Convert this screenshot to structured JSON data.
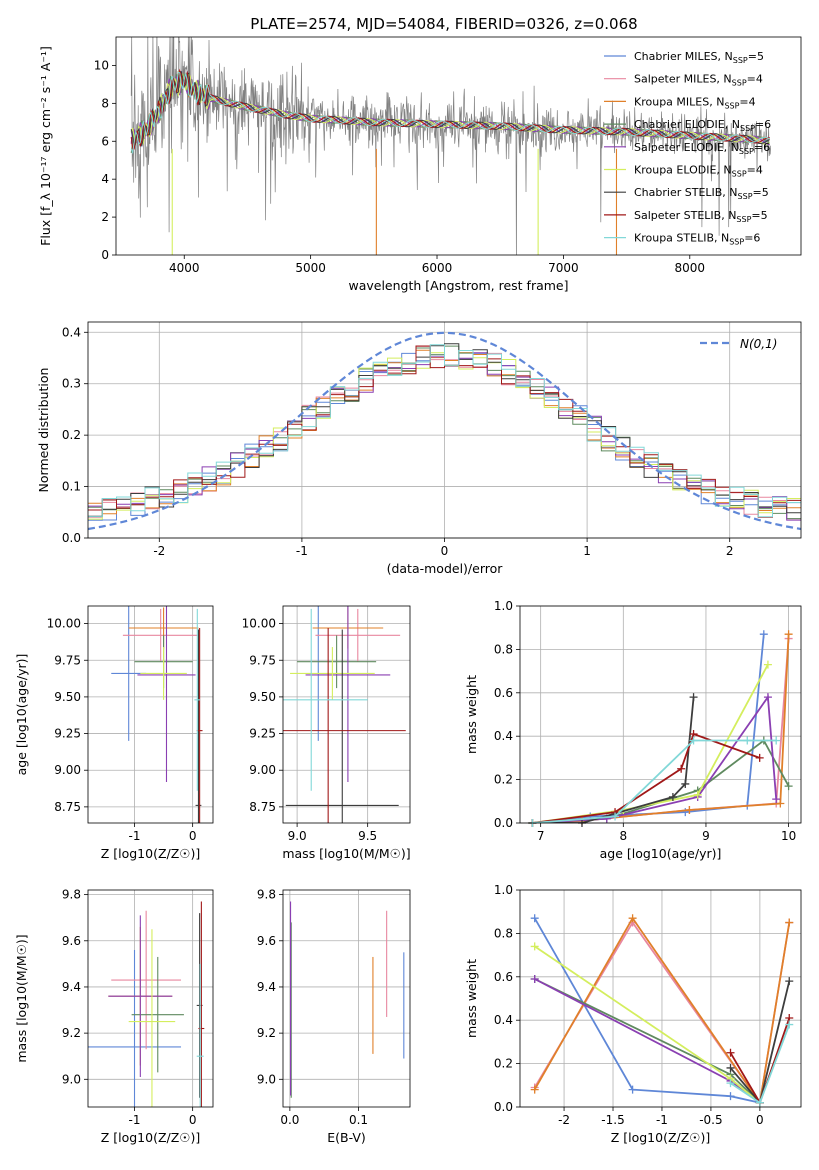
{
  "figure": {
    "title": "PLATE=2574, MJD=54084, FIBERID=0326, z=0.068",
    "fit_colors": [
      "#5f87d7",
      "#e8879f",
      "#e0802a",
      "#5f8a5f",
      "#8a3fb2",
      "#d4ee5e",
      "#3d3d3d",
      "#a01818",
      "#82d8d8"
    ]
  },
  "chart_data": [
    {
      "id": "spectrum",
      "type": "line",
      "title": "PLATE=2574, MJD=54084, FIBERID=0326, z=0.068",
      "xlabel": "wavelength [Angstrom, rest frame]",
      "ylabel": "Flux [f_λ 10⁻¹⁷ erg cm⁻² s⁻¹ A⁻¹]",
      "xlim": [
        3460,
        8880
      ],
      "ylim": [
        0,
        11.5
      ],
      "xticks": [
        4000,
        5000,
        6000,
        7000,
        8000
      ],
      "yticks": [
        0,
        2,
        4,
        6,
        8,
        10
      ],
      "grid": false,
      "legend_position": "top-right",
      "series": [
        {
          "name": "Chabrier MILES, N_SSP=5",
          "label_main": "Chabrier MILES, N",
          "label_sub": "SSP",
          "label_end": "=5"
        },
        {
          "name": "Salpeter MILES, N_SSP=4",
          "label_main": "Salpeter MILES, N",
          "label_sub": "SSP",
          "label_end": "=4"
        },
        {
          "name": "Kroupa MILES, N_SSP=4",
          "label_main": "Kroupa MILES, N",
          "label_sub": "SSP",
          "label_end": "=4"
        },
        {
          "name": "Chabrier ELODIE, N_SSP=6",
          "label_main": "Chabrier ELODIE, N",
          "label_sub": "SSP",
          "label_end": "=6"
        },
        {
          "name": "Salpeter ELODIE, N_SSP=6",
          "label_main": "Salpeter ELODIE, N",
          "label_sub": "SSP",
          "label_end": "=6"
        },
        {
          "name": "Kroupa ELODIE, N_SSP=4",
          "label_main": "Kroupa ELODIE, N",
          "label_sub": "SSP",
          "label_end": "=4"
        },
        {
          "name": "Chabrier STELIB, N_SSP=5",
          "label_main": "Chabrier STELIB, N",
          "label_sub": "SSP",
          "label_end": "=5"
        },
        {
          "name": "Salpeter STELIB, N_SSP=5",
          "label_main": "Salpeter STELIB, N",
          "label_sub": "SSP",
          "label_end": "=5"
        },
        {
          "name": "Kroupa STELIB, N_SSP=6",
          "label_main": "Kroupa STELIB, N",
          "label_sub": "SSP",
          "label_end": "=6"
        }
      ],
      "continuum": {
        "x": [
          3580,
          3700,
          3800,
          3900,
          4000,
          4100,
          4200,
          4300,
          4500,
          4800,
          5000,
          5500,
          6000,
          6500,
          7000,
          7500,
          8000,
          8500,
          8640
        ],
        "y": [
          6.0,
          6.6,
          7.6,
          8.9,
          9.2,
          8.6,
          8.3,
          8.1,
          7.8,
          7.4,
          7.2,
          7.0,
          6.9,
          6.8,
          6.6,
          6.5,
          6.3,
          6.1,
          6.0
        ]
      }
    },
    {
      "id": "residuals",
      "type": "line",
      "xlabel": "(data-model)/error",
      "ylabel": "Normed distribution",
      "xlim": [
        -2.5,
        2.5
      ],
      "ylim": [
        0,
        0.42
      ],
      "xticks": [
        -2,
        -1,
        0,
        1,
        2
      ],
      "yticks": [
        0.0,
        0.1,
        0.2,
        0.3,
        0.4
      ],
      "grid": true,
      "legend_position": "top-right",
      "normal_curve": {
        "name": "N(0,1)",
        "mean": 0,
        "sigma": 1
      }
    },
    {
      "id": "age-vs-Z",
      "type": "scatter",
      "xlabel": "Z [log10(Z/Z☉)]",
      "ylabel": "age [log10(age/yr)]",
      "xlim": [
        -1.8,
        0.35
      ],
      "ylim": [
        8.64,
        10.12
      ],
      "xticks": [
        -1,
        0
      ],
      "yticks": [
        8.75,
        9.0,
        9.25,
        9.5,
        9.75,
        10.0
      ],
      "grid": true,
      "points": [
        {
          "x": -1.1,
          "xerr": 0.3,
          "y": 9.66,
          "yerr": 0.46
        },
        {
          "x": -0.55,
          "xerr": 0.65,
          "y": 9.92,
          "yerr": 0.18
        },
        {
          "x": -0.5,
          "xerr": 0.6,
          "y": 9.97,
          "yerr": 0.14
        },
        {
          "x": -0.5,
          "xerr": 0.5,
          "y": 9.74,
          "yerr": 0.18
        },
        {
          "x": -0.45,
          "xerr": 0.5,
          "y": 9.65,
          "yerr": 0.73
        },
        {
          "x": -0.5,
          "xerr": 0.4,
          "y": 9.66,
          "yerr": 0.18
        },
        {
          "x": 0.1,
          "xerr": 0.05,
          "y": 8.76,
          "yerr": 1.2
        },
        {
          "x": 0.12,
          "xerr": 0.05,
          "y": 9.27,
          "yerr": 0.7
        },
        {
          "x": 0.08,
          "xerr": 0.05,
          "y": 9.48,
          "yerr": 0.62
        }
      ]
    },
    {
      "id": "age-vs-mass",
      "type": "scatter",
      "xlabel": "mass [log10(M/M☉)]",
      "ylabel": "",
      "xlim": [
        8.9,
        9.8
      ],
      "ylim": [
        8.64,
        10.12
      ],
      "xticks": [
        9.0,
        9.5
      ],
      "yticks": [
        8.75,
        9.0,
        9.25,
        9.5,
        9.75,
        10.0
      ],
      "grid": true,
      "points": [
        {
          "x": 9.15,
          "xerr": 0.0,
          "y": 9.66,
          "yerr": 0.46
        },
        {
          "x": 9.43,
          "xerr": 0.3,
          "y": 9.92,
          "yerr": 0.18
        },
        {
          "x": 9.36,
          "xerr": 0.25,
          "y": 9.97,
          "yerr": 0.14
        },
        {
          "x": 9.28,
          "xerr": 0.28,
          "y": 9.74,
          "yerr": 0.18
        },
        {
          "x": 9.36,
          "xerr": 0.3,
          "y": 9.65,
          "yerr": 0.73
        },
        {
          "x": 9.25,
          "xerr": 0.3,
          "y": 9.66,
          "yerr": 0.18
        },
        {
          "x": 9.32,
          "xerr": 0.4,
          "y": 8.76,
          "yerr": 1.2
        },
        {
          "x": 9.22,
          "xerr": 0.55,
          "y": 9.27,
          "yerr": 0.7
        },
        {
          "x": 9.1,
          "xerr": 0.4,
          "y": 9.48,
          "yerr": 0.62
        }
      ]
    },
    {
      "id": "mass-weight-vs-age",
      "type": "line",
      "xlabel": "age  [log10(age/yr)]",
      "ylabel": "mass weight",
      "xlim": [
        6.75,
        10.15
      ],
      "ylim": [
        0,
        1.0
      ],
      "xticks": [
        7,
        8,
        9,
        10
      ],
      "yticks": [
        0.0,
        0.2,
        0.4,
        0.6,
        0.8,
        1.0
      ],
      "grid": true,
      "series": [
        {
          "name": "Chabrier MILES",
          "x": [
            6.9,
            7.6,
            8.75,
            9.5,
            9.7
          ],
          "y": [
            0.0,
            0.03,
            0.05,
            0.08,
            0.87
          ]
        },
        {
          "name": "Salpeter MILES",
          "x": [
            6.9,
            7.5,
            8.8,
            9.85,
            10.0
          ],
          "y": [
            0.0,
            0.01,
            0.06,
            0.09,
            0.85
          ]
        },
        {
          "name": "Kroupa MILES",
          "x": [
            6.9,
            7.5,
            8.8,
            9.9,
            10.0
          ],
          "y": [
            0.0,
            0.01,
            0.06,
            0.09,
            0.87
          ]
        },
        {
          "name": "Chabrier ELODIE",
          "x": [
            6.9,
            7.8,
            8.9,
            9.7,
            10.0
          ],
          "y": [
            0.0,
            0.02,
            0.15,
            0.38,
            0.17
          ]
        },
        {
          "name": "Salpeter ELODIE",
          "x": [
            6.9,
            7.8,
            8.9,
            9.75,
            9.85
          ],
          "y": [
            0.0,
            0.02,
            0.12,
            0.58,
            0.11
          ]
        },
        {
          "name": "Kroupa ELODIE",
          "x": [
            6.9,
            8.0,
            8.9,
            9.75
          ],
          "y": [
            0.0,
            0.06,
            0.13,
            0.73
          ]
        },
        {
          "name": "Chabrier STELIB",
          "x": [
            6.9,
            7.5,
            8.6,
            8.75,
            8.85
          ],
          "y": [
            0.0,
            0.0,
            0.12,
            0.18,
            0.58
          ]
        },
        {
          "name": "Salpeter STELIB",
          "x": [
            6.9,
            7.9,
            8.7,
            8.85,
            9.65
          ],
          "y": [
            0.0,
            0.05,
            0.25,
            0.41,
            0.3
          ]
        },
        {
          "name": "Kroupa STELIB",
          "x": [
            6.9,
            7.9,
            8.85,
            9.5,
            9.85
          ],
          "y": [
            0.0,
            0.03,
            0.38,
            0.38,
            0.38
          ]
        }
      ]
    },
    {
      "id": "mass-vs-Z",
      "type": "scatter",
      "xlabel": "Z [log10(Z/Z☉)]",
      "ylabel": "mass [log10(M/M☉)]",
      "xlim": [
        -1.8,
        0.35
      ],
      "ylim": [
        8.88,
        9.82
      ],
      "xticks": [
        -1,
        0
      ],
      "yticks": [
        9.0,
        9.2,
        9.4,
        9.6,
        9.8
      ],
      "grid": true,
      "points": [
        {
          "x": -1.0,
          "xerr": 0.8,
          "y": 9.14,
          "yerr": 0.42
        },
        {
          "x": -0.8,
          "xerr": 0.6,
          "y": 9.43,
          "yerr": 0.3
        },
        {
          "x": -0.9,
          "xerr": 0.55,
          "y": 9.36,
          "yerr": 0.3
        },
        {
          "x": -0.6,
          "xerr": 0.45,
          "y": 9.28,
          "yerr": 0.25
        },
        {
          "x": -0.9,
          "xerr": 0.55,
          "y": 9.36,
          "yerr": 0.35
        },
        {
          "x": -0.7,
          "xerr": 0.4,
          "y": 9.25,
          "yerr": 0.4
        },
        {
          "x": 0.12,
          "xerr": 0.05,
          "y": 9.32,
          "yerr": 0.4
        },
        {
          "x": 0.15,
          "xerr": 0.05,
          "y": 9.22,
          "yerr": 0.55
        },
        {
          "x": 0.13,
          "xerr": 0.06,
          "y": 9.1,
          "yerr": 0.4
        }
      ]
    },
    {
      "id": "mass-vs-EBV",
      "type": "scatter",
      "xlabel": "E(B-V)",
      "ylabel": "",
      "xlim": [
        -0.01,
        0.175
      ],
      "ylim": [
        8.88,
        9.82
      ],
      "xticks": [
        0.0,
        0.1
      ],
      "yticks": [
        9.0,
        9.2,
        9.4,
        9.6,
        9.8
      ],
      "grid": true,
      "points": [
        {
          "x": 0.166,
          "y": 9.32,
          "yerr": 0.23
        },
        {
          "x": 0.141,
          "y": 9.5,
          "yerr": 0.23
        },
        {
          "x": 0.121,
          "y": 9.32,
          "yerr": 0.21
        },
        {
          "x": 0.002,
          "y": 9.3,
          "yerr": 0.38
        },
        {
          "x": 0.001,
          "y": 9.35,
          "yerr": 0.42
        }
      ]
    },
    {
      "id": "mass-weight-vs-Z",
      "type": "line",
      "xlabel": "Z [log10(Z/Z☉)]",
      "ylabel": "mass weight",
      "xlim": [
        -2.45,
        0.42
      ],
      "ylim": [
        0,
        1.0
      ],
      "xticks": [
        -2.0,
        -1.5,
        -1.0,
        -0.5,
        0.0
      ],
      "yticks": [
        0.0,
        0.2,
        0.4,
        0.6,
        0.8,
        1.0
      ],
      "grid": true,
      "series": [
        {
          "name": "Chabrier MILES",
          "x": [
            -2.3,
            -1.3,
            -0.3,
            0.0
          ],
          "y": [
            0.87,
            0.08,
            0.05,
            0.02
          ]
        },
        {
          "name": "Salpeter MILES",
          "x": [
            -2.3,
            -1.3,
            0.0,
            0.3
          ],
          "y": [
            0.09,
            0.85,
            0.02,
            0.85
          ]
        },
        {
          "name": "Kroupa MILES",
          "x": [
            -2.3,
            -1.3,
            0.0,
            0.3
          ],
          "y": [
            0.08,
            0.87,
            0.02,
            0.85
          ]
        },
        {
          "name": "Chabrier ELODIE",
          "x": [
            -2.3,
            -0.3,
            0.0
          ],
          "y": [
            0.59,
            0.15,
            0.02
          ]
        },
        {
          "name": "Salpeter ELODIE",
          "x": [
            -2.3,
            -0.3,
            0.0
          ],
          "y": [
            0.59,
            0.12,
            0.02
          ]
        },
        {
          "name": "Kroupa ELODIE",
          "x": [
            -2.3,
            -0.3,
            0.0
          ],
          "y": [
            0.74,
            0.13,
            0.02
          ]
        },
        {
          "name": "Chabrier STELIB",
          "x": [
            -0.3,
            0.0,
            0.3
          ],
          "y": [
            0.18,
            0.02,
            0.58
          ]
        },
        {
          "name": "Salpeter STELIB",
          "x": [
            -0.3,
            0.0,
            0.3
          ],
          "y": [
            0.25,
            0.02,
            0.41
          ]
        },
        {
          "name": "Kroupa STELIB",
          "x": [
            -0.3,
            0.0,
            0.3
          ],
          "y": [
            0.11,
            0.02,
            0.38
          ]
        }
      ]
    }
  ]
}
